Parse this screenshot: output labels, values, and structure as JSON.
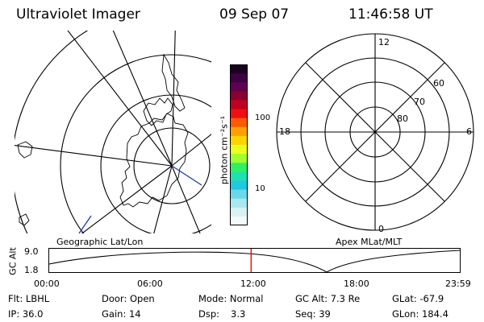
{
  "header": {
    "title": "Ultraviolet Imager",
    "date": "09 Sep 07",
    "time": "11:46:58 UT"
  },
  "colorbar": {
    "unit": "photon cm⁻²s⁻¹",
    "ticks": [
      "100",
      "10"
    ],
    "colors": [
      "#1a0022",
      "#3d0040",
      "#600050",
      "#8a0030",
      "#c00020",
      "#ee1010",
      "#ff5a00",
      "#ffa000",
      "#ffd400",
      "#e8ff20",
      "#a0ff30",
      "#30f060",
      "#20e0b0",
      "#20c8e0",
      "#6ad8e8",
      "#a8e8ee",
      "#d8f2f4",
      "#f4fafa"
    ]
  },
  "left_map": {
    "label": "Geographic Lat/Lon"
  },
  "right_map": {
    "label": "Apex  MLat/MLT",
    "mlt_labels": [
      "12",
      "18",
      "6",
      "0"
    ],
    "mlat_labels": [
      "60",
      "70",
      "80"
    ]
  },
  "altitude_plot": {
    "ylabel": "GC Alt",
    "yticks": [
      "9.0",
      "1.8"
    ],
    "xticks": [
      "00:00",
      "06:00",
      "12:00",
      "18:00",
      "23:59"
    ],
    "marker_time_hours": 11.78
  },
  "info": {
    "flt": "Flt: LBHL",
    "door": "Door: Open",
    "mode": "Mode: Normal",
    "gcalt": "GC Alt: 7.3 Re",
    "glat": "GLat: -67.9",
    "ip": "IP: 36.0",
    "gain": "Gain: 14",
    "dsp": "Dsp:",
    "dsp_val": "3.3",
    "seq": "Seq: 39",
    "glon": "GLon: 184.4"
  }
}
